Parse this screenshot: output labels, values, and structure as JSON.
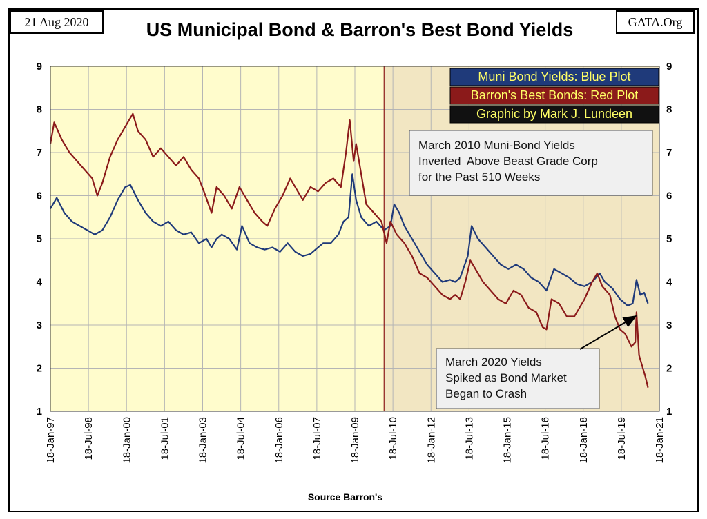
{
  "header": {
    "date": "21 Aug 2020",
    "site": "GATA.Org",
    "title": "US Municipal Bond & Barron's Best Bond Yields"
  },
  "footer": {
    "source": "Source Barron's"
  },
  "legend": [
    {
      "text": "Muni Bond Yields: Blue Plot",
      "bg": "#1f3a7a",
      "fg": "#ffff66"
    },
    {
      "text": "Barron's Best Bonds: Red Plot",
      "bg": "#8b1a1a",
      "fg": "#ffff66"
    },
    {
      "text": "Graphic by Mark J. Lundeen",
      "bg": "#111111",
      "fg": "#ffff66"
    }
  ],
  "annotations": {
    "inversion": [
      "March 2010 Muni-Bond Yields",
      "Inverted  Above Beast Grade Corp",
      "for the Past 510 Weeks"
    ],
    "crash": [
      "March 2020 Yields",
      "Spiked as Bond Market",
      "Began to Crash"
    ]
  },
  "colors": {
    "muni": "#1f3a7a",
    "barrons": "#8b1a1a",
    "bg_left": "#fffccc",
    "bg_right": "#f2e6c2",
    "note_bg": "#f0f0f0"
  },
  "chart_data": {
    "type": "line",
    "title": "US Municipal Bond & Barron's Best Bond Yields",
    "xlabel": "Source Barron's",
    "ylabel": "",
    "ylim": [
      1,
      9
    ],
    "yticks": [
      1,
      2,
      3,
      4,
      5,
      6,
      7,
      8,
      9
    ],
    "xlim": [
      1997.05,
      2021.05
    ],
    "x_ticks": [
      {
        "label": "18-Jan-97",
        "x": 1997.05
      },
      {
        "label": "18-Jul-98",
        "x": 1998.55
      },
      {
        "label": "18-Jan-00",
        "x": 2000.05
      },
      {
        "label": "18-Jul-01",
        "x": 2001.55
      },
      {
        "label": "18-Jan-03",
        "x": 2003.05
      },
      {
        "label": "18-Jul-04",
        "x": 2004.55
      },
      {
        "label": "18-Jan-06",
        "x": 2006.05
      },
      {
        "label": "18-Jul-07",
        "x": 2007.55
      },
      {
        "label": "18-Jan-09",
        "x": 2009.05
      },
      {
        "label": "18-Jul-10",
        "x": 2010.55
      },
      {
        "label": "18-Jan-12",
        "x": 2012.05
      },
      {
        "label": "18-Jul-13",
        "x": 2013.55
      },
      {
        "label": "18-Jan-15",
        "x": 2015.05
      },
      {
        "label": "18-Jul-16",
        "x": 2016.55
      },
      {
        "label": "18-Jan-18",
        "x": 2018.05
      },
      {
        "label": "18-Jul-19",
        "x": 2019.55
      },
      {
        "label": "18-Jan-21",
        "x": 2021.05
      }
    ],
    "shaded_region_start": 2010.2,
    "series": [
      {
        "name": "Muni Bond Yields",
        "color": "#1f3a7a",
        "points": [
          [
            1997.05,
            5.7
          ],
          [
            1997.3,
            5.95
          ],
          [
            1997.6,
            5.6
          ],
          [
            1997.9,
            5.4
          ],
          [
            1998.2,
            5.3
          ],
          [
            1998.5,
            5.2
          ],
          [
            1998.8,
            5.1
          ],
          [
            1999.1,
            5.2
          ],
          [
            1999.4,
            5.5
          ],
          [
            1999.7,
            5.9
          ],
          [
            2000.0,
            6.2
          ],
          [
            2000.2,
            6.25
          ],
          [
            2000.5,
            5.9
          ],
          [
            2000.8,
            5.6
          ],
          [
            2001.1,
            5.4
          ],
          [
            2001.4,
            5.3
          ],
          [
            2001.7,
            5.4
          ],
          [
            2002.0,
            5.2
          ],
          [
            2002.3,
            5.1
          ],
          [
            2002.6,
            5.15
          ],
          [
            2002.9,
            4.9
          ],
          [
            2003.2,
            5.0
          ],
          [
            2003.4,
            4.8
          ],
          [
            2003.6,
            5.0
          ],
          [
            2003.8,
            5.1
          ],
          [
            2004.1,
            5.0
          ],
          [
            2004.4,
            4.75
          ],
          [
            2004.6,
            5.3
          ],
          [
            2004.9,
            4.9
          ],
          [
            2005.2,
            4.8
          ],
          [
            2005.5,
            4.75
          ],
          [
            2005.8,
            4.8
          ],
          [
            2006.1,
            4.7
          ],
          [
            2006.4,
            4.9
          ],
          [
            2006.7,
            4.7
          ],
          [
            2007.0,
            4.6
          ],
          [
            2007.3,
            4.65
          ],
          [
            2007.5,
            4.75
          ],
          [
            2007.8,
            4.9
          ],
          [
            2008.1,
            4.9
          ],
          [
            2008.4,
            5.1
          ],
          [
            2008.6,
            5.4
          ],
          [
            2008.8,
            5.5
          ],
          [
            2008.95,
            6.5
          ],
          [
            2009.1,
            5.9
          ],
          [
            2009.3,
            5.5
          ],
          [
            2009.6,
            5.3
          ],
          [
            2009.9,
            5.4
          ],
          [
            2010.2,
            5.2
          ],
          [
            2010.45,
            5.3
          ],
          [
            2010.6,
            5.8
          ],
          [
            2010.8,
            5.6
          ],
          [
            2011.0,
            5.3
          ],
          [
            2011.3,
            5.0
          ],
          [
            2011.6,
            4.7
          ],
          [
            2011.9,
            4.4
          ],
          [
            2012.2,
            4.2
          ],
          [
            2012.5,
            4.0
          ],
          [
            2012.8,
            4.05
          ],
          [
            2013.0,
            4.0
          ],
          [
            2013.2,
            4.1
          ],
          [
            2013.5,
            4.6
          ],
          [
            2013.65,
            5.3
          ],
          [
            2013.9,
            5.0
          ],
          [
            2014.2,
            4.8
          ],
          [
            2014.5,
            4.6
          ],
          [
            2014.8,
            4.4
          ],
          [
            2015.1,
            4.3
          ],
          [
            2015.4,
            4.4
          ],
          [
            2015.7,
            4.3
          ],
          [
            2016.0,
            4.1
          ],
          [
            2016.3,
            4.0
          ],
          [
            2016.6,
            3.8
          ],
          [
            2016.9,
            4.3
          ],
          [
            2017.2,
            4.2
          ],
          [
            2017.5,
            4.1
          ],
          [
            2017.8,
            3.95
          ],
          [
            2018.1,
            3.9
          ],
          [
            2018.4,
            4.0
          ],
          [
            2018.7,
            4.2
          ],
          [
            2018.9,
            4.0
          ],
          [
            2019.2,
            3.85
          ],
          [
            2019.5,
            3.6
          ],
          [
            2019.8,
            3.45
          ],
          [
            2020.0,
            3.5
          ],
          [
            2020.15,
            4.05
          ],
          [
            2020.3,
            3.7
          ],
          [
            2020.45,
            3.75
          ],
          [
            2020.6,
            3.5
          ]
        ]
      },
      {
        "name": "Barron's Best Bonds",
        "color": "#8b1a1a",
        "points": [
          [
            1997.05,
            7.2
          ],
          [
            1997.2,
            7.7
          ],
          [
            1997.5,
            7.3
          ],
          [
            1997.8,
            7.0
          ],
          [
            1998.1,
            6.8
          ],
          [
            1998.4,
            6.6
          ],
          [
            1998.7,
            6.4
          ],
          [
            1998.9,
            6.0
          ],
          [
            1999.1,
            6.3
          ],
          [
            1999.4,
            6.9
          ],
          [
            1999.7,
            7.3
          ],
          [
            2000.0,
            7.6
          ],
          [
            2000.3,
            7.9
          ],
          [
            2000.5,
            7.5
          ],
          [
            2000.8,
            7.3
          ],
          [
            2001.1,
            6.9
          ],
          [
            2001.4,
            7.1
          ],
          [
            2001.7,
            6.9
          ],
          [
            2002.0,
            6.7
          ],
          [
            2002.3,
            6.9
          ],
          [
            2002.6,
            6.6
          ],
          [
            2002.9,
            6.4
          ],
          [
            2003.1,
            6.1
          ],
          [
            2003.4,
            5.6
          ],
          [
            2003.6,
            6.2
          ],
          [
            2003.9,
            6.0
          ],
          [
            2004.2,
            5.7
          ],
          [
            2004.5,
            6.2
          ],
          [
            2004.8,
            5.9
          ],
          [
            2005.1,
            5.6
          ],
          [
            2005.4,
            5.4
          ],
          [
            2005.6,
            5.3
          ],
          [
            2005.9,
            5.7
          ],
          [
            2006.2,
            6.0
          ],
          [
            2006.5,
            6.4
          ],
          [
            2006.8,
            6.1
          ],
          [
            2007.0,
            5.9
          ],
          [
            2007.3,
            6.2
          ],
          [
            2007.6,
            6.1
          ],
          [
            2007.9,
            6.3
          ],
          [
            2008.2,
            6.4
          ],
          [
            2008.5,
            6.2
          ],
          [
            2008.7,
            7.0
          ],
          [
            2008.85,
            7.75
          ],
          [
            2009.0,
            6.8
          ],
          [
            2009.1,
            7.2
          ],
          [
            2009.3,
            6.5
          ],
          [
            2009.5,
            5.8
          ],
          [
            2009.8,
            5.6
          ],
          [
            2010.1,
            5.4
          ],
          [
            2010.3,
            4.9
          ],
          [
            2010.45,
            5.4
          ],
          [
            2010.7,
            5.1
          ],
          [
            2011.0,
            4.9
          ],
          [
            2011.3,
            4.6
          ],
          [
            2011.6,
            4.2
          ],
          [
            2011.9,
            4.1
          ],
          [
            2012.2,
            3.9
          ],
          [
            2012.5,
            3.7
          ],
          [
            2012.8,
            3.6
          ],
          [
            2013.0,
            3.7
          ],
          [
            2013.2,
            3.6
          ],
          [
            2013.4,
            4.0
          ],
          [
            2013.6,
            4.5
          ],
          [
            2013.8,
            4.3
          ],
          [
            2014.1,
            4.0
          ],
          [
            2014.4,
            3.8
          ],
          [
            2014.7,
            3.6
          ],
          [
            2015.0,
            3.5
          ],
          [
            2015.3,
            3.8
          ],
          [
            2015.6,
            3.7
          ],
          [
            2015.9,
            3.4
          ],
          [
            2016.2,
            3.3
          ],
          [
            2016.45,
            2.95
          ],
          [
            2016.6,
            2.9
          ],
          [
            2016.8,
            3.6
          ],
          [
            2017.1,
            3.5
          ],
          [
            2017.4,
            3.2
          ],
          [
            2017.7,
            3.2
          ],
          [
            2017.9,
            3.4
          ],
          [
            2018.1,
            3.6
          ],
          [
            2018.4,
            4.0
          ],
          [
            2018.6,
            4.2
          ],
          [
            2018.8,
            3.9
          ],
          [
            2019.1,
            3.7
          ],
          [
            2019.3,
            3.2
          ],
          [
            2019.5,
            2.9
          ],
          [
            2019.7,
            2.8
          ],
          [
            2019.95,
            2.5
          ],
          [
            2020.1,
            2.6
          ],
          [
            2020.15,
            3.3
          ],
          [
            2020.25,
            2.3
          ],
          [
            2020.4,
            2.0
          ],
          [
            2020.5,
            1.8
          ],
          [
            2020.6,
            1.55
          ]
        ]
      }
    ]
  }
}
